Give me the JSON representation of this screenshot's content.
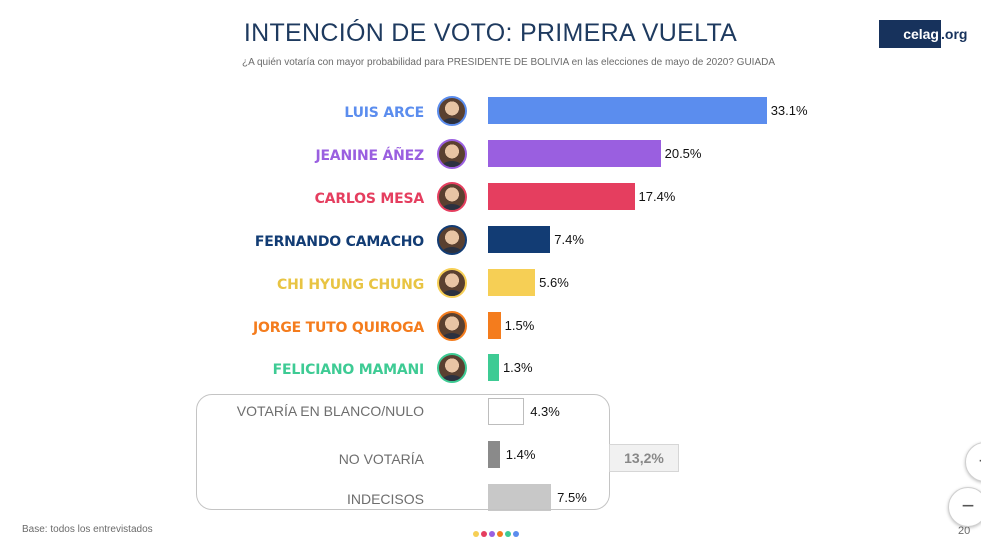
{
  "header": {
    "title": "INTENCIÓN DE VOTO: PRIMERA VUELTA",
    "subtitle": "¿A quién votaría con mayor probabilidad para PRESIDENTE DE BOLIVIA en las elecciones de mayo de 2020? GUIADA",
    "logo_main": "celag",
    "logo_tld": ".org",
    "logo_color": "#17325c"
  },
  "chart_data": {
    "type": "bar",
    "orientation": "horizontal",
    "unit": "%",
    "candidates": [
      {
        "name": "LUIS ARCE",
        "value": 33.1,
        "label": "33.1%",
        "color": "#5b8dee"
      },
      {
        "name": "JEANINE ÁÑEZ",
        "value": 20.5,
        "label": "20.5%",
        "color": "#9a5fe0"
      },
      {
        "name": "CARLOS MESA",
        "value": 17.4,
        "label": "17.4%",
        "color": "#e53e5f"
      },
      {
        "name": "FERNANDO CAMACHO",
        "value": 7.4,
        "label": "7.4%",
        "color": "#123c74"
      },
      {
        "name": "CHI HYUNG CHUNG",
        "value": 5.6,
        "label": "5.6%",
        "color": "#f6cf55"
      },
      {
        "name": "JORGE TUTO QUIROGA",
        "value": 1.5,
        "label": "1.5%",
        "color": "#f47c1d"
      },
      {
        "name": "FELICIANO MAMANI",
        "value": 1.3,
        "label": "1.3%",
        "color": "#3ecb94"
      }
    ],
    "others": [
      {
        "name": "VOTARÍA EN BLANCO/NULO",
        "value": 4.3,
        "label": "4.3%",
        "color": "#ffffff"
      },
      {
        "name": "NO VOTARÍA",
        "value": 1.4,
        "label": "1.4%",
        "color": "#8a8a8a"
      },
      {
        "name": "INDECISOS",
        "value": 7.5,
        "label": "7.5%",
        "color": "#c8c8c8"
      }
    ],
    "others_total": "13,2%"
  },
  "footer": {
    "base_note": "Base: todos los entrevistados",
    "page_number": "20",
    "dot_colors": [
      "#f6cf55",
      "#e53e5f",
      "#9a5fe0",
      "#f47c1d",
      "#3ecb94",
      "#5b8dee"
    ]
  },
  "controls": {
    "zoom_in_label": "+",
    "zoom_out_label": "−"
  }
}
